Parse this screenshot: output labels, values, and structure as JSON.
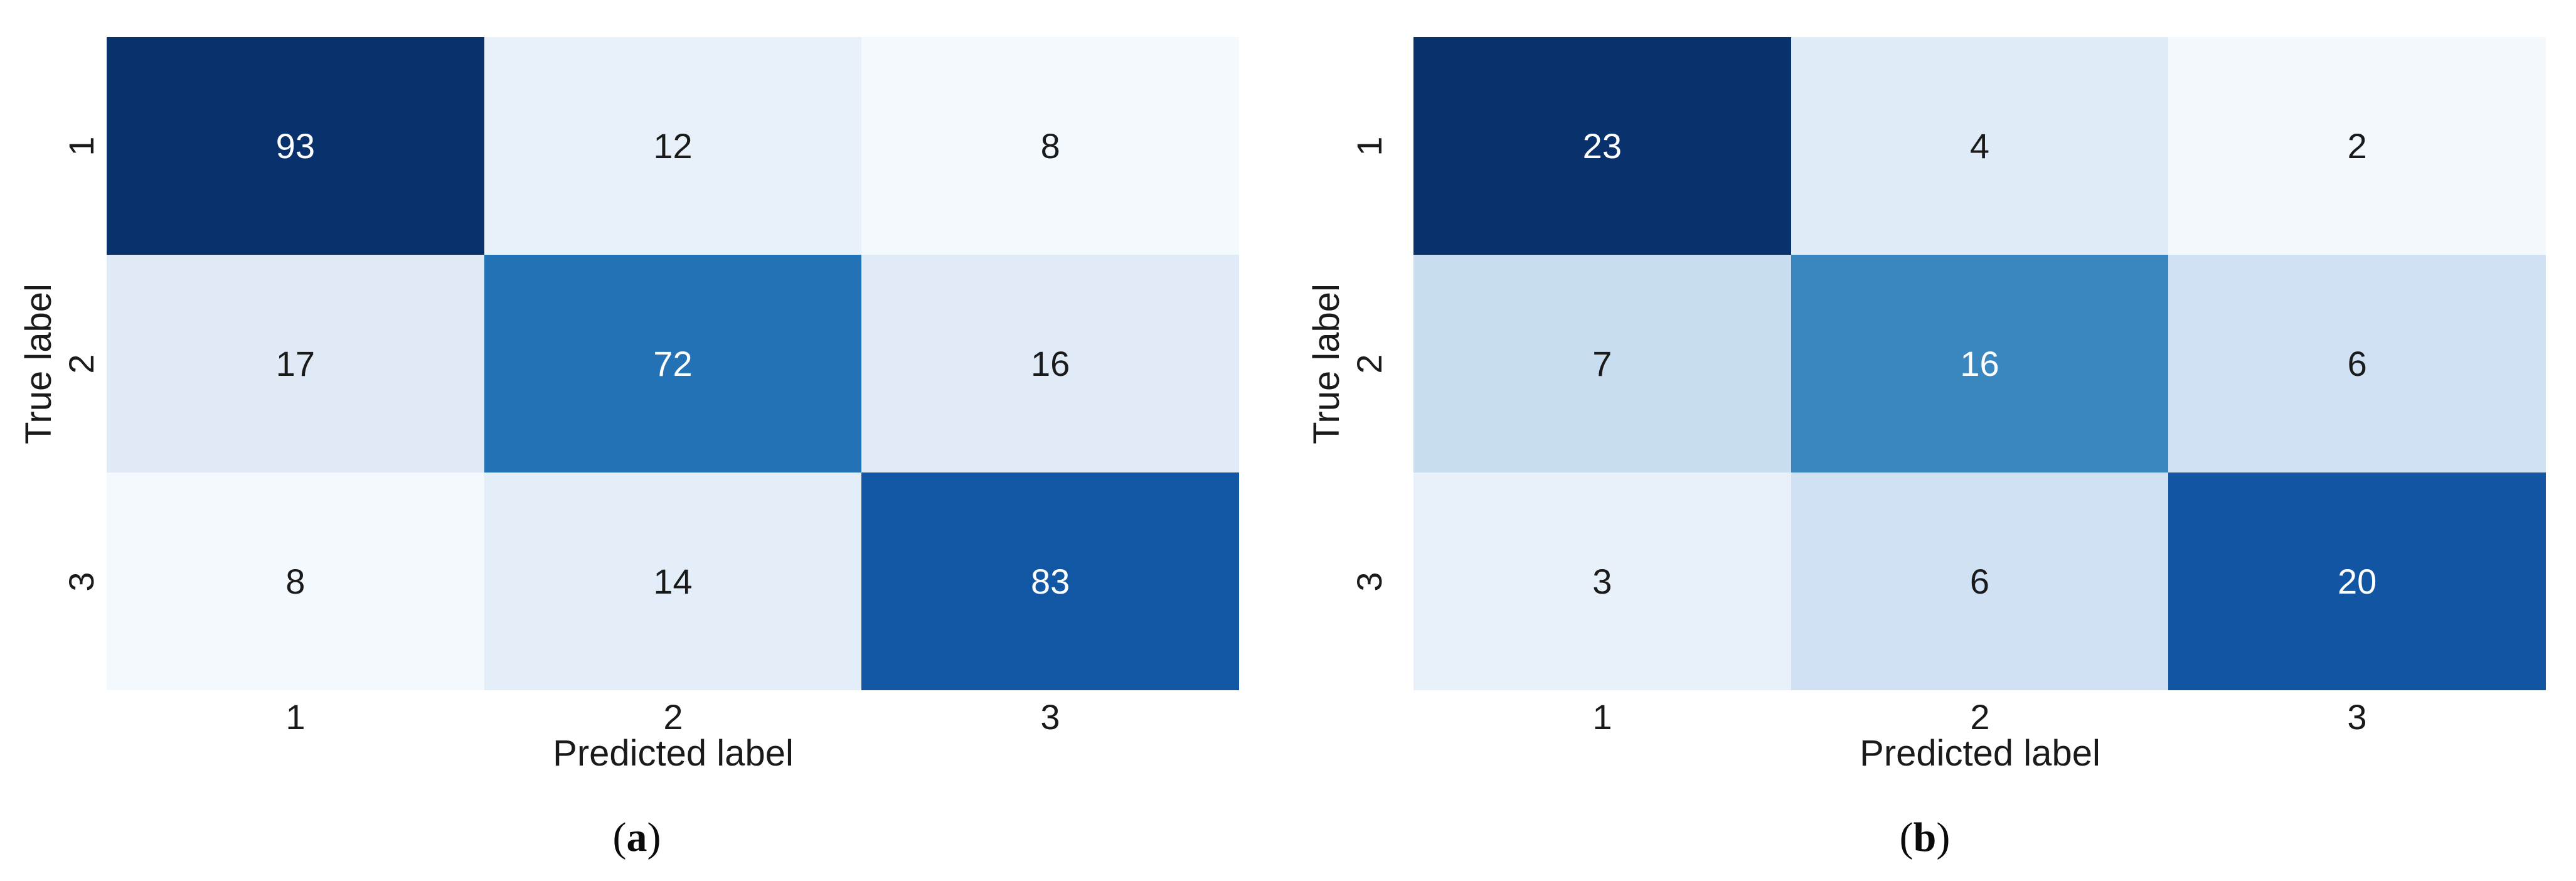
{
  "figure": {
    "background": "#ffffff",
    "text_color": "#1a1a1a",
    "colormap": "Blues",
    "dark_cell_color": "#09316c",
    "white_text_color": "#ffffff"
  },
  "chart_data": [
    {
      "type": "heatmap",
      "caption": {
        "open": "(",
        "letter": "a",
        "close": ")"
      },
      "xlabel": "Predicted label",
      "ylabel": "True label",
      "x_ticks": [
        "1",
        "2",
        "3"
      ],
      "y_ticks": [
        "1",
        "2",
        "3"
      ],
      "matrix": [
        [
          93,
          12,
          8
        ],
        [
          17,
          72,
          16
        ],
        [
          8,
          14,
          83
        ]
      ],
      "cell_colors": [
        [
          "#09316c",
          "#e8f1fa",
          "#f4f9fe"
        ],
        [
          "#dfeaf6",
          "#2272b5",
          "#e0ebf7"
        ],
        [
          "#f4f9fe",
          "#e4eef9",
          "#1157a4"
        ]
      ],
      "cell_text_colors": [
        [
          "#ffffff",
          "#1a1a1a",
          "#1a1a1a"
        ],
        [
          "#1a1a1a",
          "#ffffff",
          "#1a1a1a"
        ],
        [
          "#1a1a1a",
          "#1a1a1a",
          "#ffffff"
        ]
      ],
      "grid": "off",
      "legend": "none"
    },
    {
      "type": "heatmap",
      "caption": {
        "open": "(",
        "letter": "b",
        "close": ")"
      },
      "xlabel": "Predicted label",
      "ylabel": "True label",
      "x_ticks": [
        "1",
        "2",
        "3"
      ],
      "y_ticks": [
        "1",
        "2",
        "3"
      ],
      "matrix": [
        [
          23,
          4,
          2
        ],
        [
          7,
          16,
          6
        ],
        [
          3,
          6,
          20
        ]
      ],
      "cell_colors": [
        [
          "#09316c",
          "#dfebf7",
          "#f3f8fd"
        ],
        [
          "#c8ddf0",
          "#3a86bf",
          "#cfe1f2"
        ],
        [
          "#e8f1fa",
          "#cfe1f2",
          "#1255a2"
        ]
      ],
      "cell_text_colors": [
        [
          "#ffffff",
          "#1a1a1a",
          "#1a1a1a"
        ],
        [
          "#1a1a1a",
          "#ffffff",
          "#1a1a1a"
        ],
        [
          "#1a1a1a",
          "#1a1a1a",
          "#ffffff"
        ]
      ],
      "grid": "off",
      "legend": "none"
    }
  ]
}
